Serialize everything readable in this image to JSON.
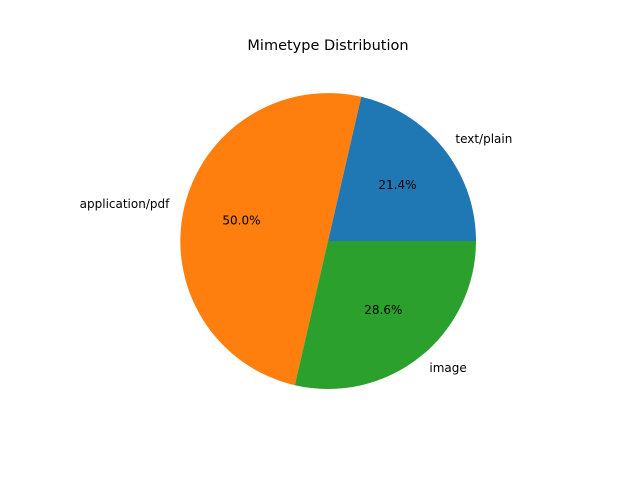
{
  "chart_data": {
    "type": "pie",
    "title": "Mimetype Distribution",
    "categories": [
      "text/plain",
      "application/pdf",
      "image"
    ],
    "values": [
      21.4,
      50.0,
      28.6
    ],
    "percent_labels": [
      "21.4%",
      "50.0%",
      "28.6%"
    ],
    "colors": [
      "#1f77b4",
      "#ff7f0e",
      "#2ca02c"
    ],
    "start_angle_deg": 0,
    "direction": "counterclockwise",
    "legend": "none"
  }
}
